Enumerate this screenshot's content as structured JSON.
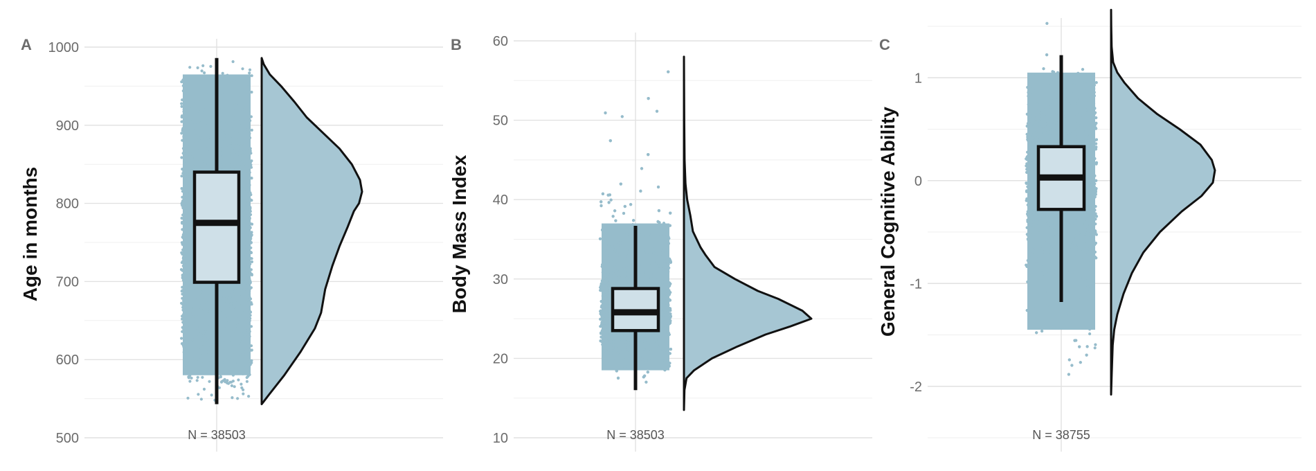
{
  "colors": {
    "points": "#96bccb",
    "density_fill": "#a6c6d3",
    "box_fill": "#cfe0e8",
    "outline": "#111111",
    "grid_major": "#e1e1e1",
    "grid_minor": "#efefef"
  },
  "chart_data": [
    {
      "type": "raincloud",
      "panel": "A",
      "title": "",
      "xlabel": "",
      "ylabel": "Age in months",
      "ylim": [
        500,
        1000
      ],
      "yticks": [
        500,
        600,
        700,
        800,
        900,
        1000
      ],
      "ytick_labels": [
        "500",
        "600",
        "700",
        "800",
        "900",
        "1000"
      ],
      "n_label": "N = 38503",
      "box": {
        "whisker_low": 543,
        "q1": 699,
        "median": 775,
        "q3": 840,
        "whisker_high": 986
      },
      "points_range": [
        543,
        986
      ],
      "density": [
        [
          543,
          0.0
        ],
        [
          555,
          0.07
        ],
        [
          580,
          0.22
        ],
        [
          610,
          0.38
        ],
        [
          640,
          0.52
        ],
        [
          660,
          0.58
        ],
        [
          690,
          0.62
        ],
        [
          720,
          0.69
        ],
        [
          745,
          0.76
        ],
        [
          770,
          0.84
        ],
        [
          790,
          0.9
        ],
        [
          800,
          0.95
        ],
        [
          815,
          0.98
        ],
        [
          830,
          0.96
        ],
        [
          850,
          0.88
        ],
        [
          870,
          0.76
        ],
        [
          890,
          0.6
        ],
        [
          910,
          0.44
        ],
        [
          930,
          0.32
        ],
        [
          950,
          0.19
        ],
        [
          965,
          0.08
        ],
        [
          978,
          0.02
        ],
        [
          986,
          0.0
        ]
      ]
    },
    {
      "type": "raincloud",
      "panel": "B",
      "title": "",
      "xlabel": "",
      "ylabel": "Body Mass Index",
      "ylim": [
        10,
        60
      ],
      "yticks": [
        10,
        20,
        30,
        40,
        50,
        60
      ],
      "ytick_labels": [
        "10",
        "20",
        "30",
        "40",
        "50",
        "60"
      ],
      "n_label": "N = 38503",
      "box": {
        "whisker_low": 16,
        "q1": 23.5,
        "median": 25.8,
        "q3": 28.8,
        "whisker_high": 36.7
      },
      "points_range": [
        14,
        58
      ],
      "density": [
        [
          13.5,
          0.0
        ],
        [
          16,
          0.004
        ],
        [
          17.5,
          0.02
        ],
        [
          18.5,
          0.08
        ],
        [
          20,
          0.22
        ],
        [
          21.5,
          0.42
        ],
        [
          23,
          0.64
        ],
        [
          24,
          0.83
        ],
        [
          25,
          1.0
        ],
        [
          26,
          0.93
        ],
        [
          27.5,
          0.74
        ],
        [
          28.5,
          0.58
        ],
        [
          30,
          0.4
        ],
        [
          31.5,
          0.24
        ],
        [
          33,
          0.17
        ],
        [
          34,
          0.13
        ],
        [
          35,
          0.1
        ],
        [
          36,
          0.07
        ],
        [
          38,
          0.05
        ],
        [
          40,
          0.025
        ],
        [
          42,
          0.012
        ],
        [
          45,
          0.005
        ],
        [
          50,
          0.002
        ],
        [
          58,
          0.0
        ]
      ]
    },
    {
      "type": "raincloud",
      "panel": "C",
      "title": "",
      "xlabel": "",
      "ylabel": "General Cognitive Ability",
      "ylim": [
        -2.5,
        1.5
      ],
      "yticks": [
        -2,
        -1,
        0,
        1
      ],
      "ytick_labels": [
        "-2",
        "-1",
        "0",
        "1"
      ],
      "n_label": "N = 38755",
      "box": {
        "whisker_low": -1.18,
        "q1": -0.28,
        "median": 0.03,
        "q3": 0.33,
        "whisker_high": 1.22
      },
      "points_range": [
        -2.05,
        1.66
      ],
      "density": [
        [
          -2.08,
          0.0
        ],
        [
          -1.9,
          0.005
        ],
        [
          -1.6,
          0.015
        ],
        [
          -1.45,
          0.03
        ],
        [
          -1.3,
          0.06
        ],
        [
          -1.1,
          0.12
        ],
        [
          -0.9,
          0.2
        ],
        [
          -0.7,
          0.31
        ],
        [
          -0.5,
          0.47
        ],
        [
          -0.3,
          0.68
        ],
        [
          -0.15,
          0.87
        ],
        [
          -0.02,
          0.98
        ],
        [
          0.1,
          1.0
        ],
        [
          0.2,
          0.97
        ],
        [
          0.35,
          0.86
        ],
        [
          0.5,
          0.66
        ],
        [
          0.65,
          0.44
        ],
        [
          0.8,
          0.26
        ],
        [
          0.95,
          0.13
        ],
        [
          1.05,
          0.06
        ],
        [
          1.15,
          0.02
        ],
        [
          1.3,
          0.005
        ],
        [
          1.5,
          0.001
        ],
        [
          1.66,
          0.0
        ]
      ]
    }
  ]
}
